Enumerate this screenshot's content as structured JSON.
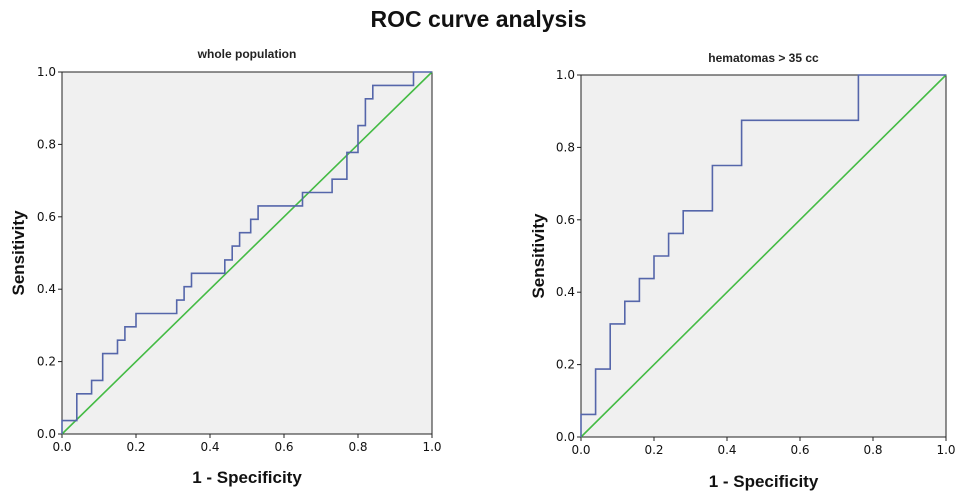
{
  "figure_title": "ROC curve analysis",
  "chart_data": [
    {
      "type": "line",
      "title": "whole population",
      "xlabel": "1 - Specificity",
      "ylabel": "Sensitivity",
      "xlim": [
        0,
        1
      ],
      "ylim": [
        0,
        1
      ],
      "xticks": [
        "0.0",
        "0.2",
        "0.4",
        "0.6",
        "0.8",
        "1.0"
      ],
      "yticks": [
        "0.0",
        "0.2",
        "0.4",
        "0.6",
        "0.8",
        "1.0"
      ],
      "grid": false,
      "colors": {
        "curve": "#5566aa",
        "reference": "#44bb44",
        "background": "#f0f0f0"
      },
      "series": [
        {
          "role": "roc-curve",
          "x": [
            0,
            0,
            0.04,
            0.04,
            0.08,
            0.08,
            0.11,
            0.11,
            0.15,
            0.15,
            0.17,
            0.17,
            0.2,
            0.2,
            0.24,
            0.24,
            0.31,
            0.31,
            0.33,
            0.33,
            0.35,
            0.35,
            0.38,
            0.38,
            0.44,
            0.44,
            0.46,
            0.46,
            0.48,
            0.48,
            0.51,
            0.51,
            0.53,
            0.53,
            0.65,
            0.65,
            0.73,
            0.73,
            0.77,
            0.77,
            0.8,
            0.8,
            0.82,
            0.82,
            0.84,
            0.84,
            0.87,
            0.87,
            0.95,
            0.95,
            1.0,
            1.0
          ],
          "y": [
            0,
            0.037,
            0.037,
            0.111,
            0.111,
            0.148,
            0.148,
            0.222,
            0.222,
            0.259,
            0.259,
            0.296,
            0.296,
            0.333,
            0.333,
            0.333,
            0.333,
            0.37,
            0.37,
            0.407,
            0.407,
            0.444,
            0.444,
            0.444,
            0.444,
            0.481,
            0.481,
            0.519,
            0.519,
            0.556,
            0.556,
            0.593,
            0.593,
            0.63,
            0.63,
            0.667,
            0.667,
            0.704,
            0.704,
            0.778,
            0.778,
            0.852,
            0.852,
            0.926,
            0.926,
            0.963,
            0.963,
            0.963,
            0.963,
            1.0,
            1.0,
            1.0
          ]
        },
        {
          "role": "reference-line",
          "x": [
            0,
            1
          ],
          "y": [
            0,
            1
          ]
        }
      ]
    },
    {
      "type": "line",
      "title": "hematomas > 35 cc",
      "xlabel": "1 - Specificity",
      "ylabel": "Sensitivity",
      "xlim": [
        0,
        1
      ],
      "ylim": [
        0,
        1
      ],
      "xticks": [
        "0.0",
        "0.2",
        "0.4",
        "0.6",
        "0.8",
        "1.0"
      ],
      "yticks": [
        "0.0",
        "0.2",
        "0.4",
        "0.6",
        "0.8",
        "1.0"
      ],
      "grid": false,
      "colors": {
        "curve": "#5566aa",
        "reference": "#44bb44",
        "background": "#f0f0f0"
      },
      "series": [
        {
          "role": "roc-curve",
          "x": [
            0,
            0,
            0.04,
            0.04,
            0.08,
            0.08,
            0.12,
            0.12,
            0.16,
            0.16,
            0.2,
            0.2,
            0.24,
            0.24,
            0.28,
            0.28,
            0.36,
            0.36,
            0.44,
            0.44,
            0.72,
            0.72,
            0.76,
            0.76,
            1.0
          ],
          "y": [
            0,
            0.0625,
            0.0625,
            0.1875,
            0.1875,
            0.3125,
            0.3125,
            0.375,
            0.375,
            0.4375,
            0.4375,
            0.5,
            0.5,
            0.5625,
            0.5625,
            0.625,
            0.625,
            0.75,
            0.75,
            0.875,
            0.875,
            0.875,
            0.875,
            1.0,
            1.0
          ]
        },
        {
          "role": "reference-line",
          "x": [
            0,
            1
          ],
          "y": [
            0,
            1
          ]
        }
      ]
    }
  ]
}
